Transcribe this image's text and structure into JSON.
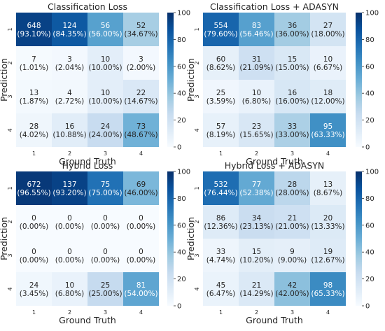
{
  "chart_data": [
    {
      "type": "heatmap",
      "title": "Classification Loss",
      "xlabel": "Ground Truth",
      "ylabel": "Prediction",
      "x_categories": [
        "1",
        "2",
        "3",
        "4"
      ],
      "y_categories": [
        "1",
        "2",
        "3",
        "4"
      ],
      "counts": [
        [
          648,
          124,
          56,
          52
        ],
        [
          7,
          3,
          10,
          3
        ],
        [
          13,
          4,
          10,
          22
        ],
        [
          28,
          16,
          24,
          73
        ]
      ],
      "percents": [
        [
          "(93.10%)",
          "(84.35%)",
          "(56.00%)",
          "(34.67%)"
        ],
        [
          "(1.01%)",
          "(2.04%)",
          "(10.00%)",
          "(2.00%)"
        ],
        [
          "(1.87%)",
          "(2.72%)",
          "(10.00%)",
          "(14.67%)"
        ],
        [
          "(4.02%)",
          "(10.88%)",
          "(24.00%)",
          "(48.67%)"
        ]
      ],
      "color_values": [
        [
          93.1,
          84.35,
          56.0,
          34.67
        ],
        [
          1.01,
          2.04,
          10.0,
          2.0
        ],
        [
          1.87,
          2.72,
          10.0,
          14.67
        ],
        [
          4.02,
          10.88,
          24.0,
          48.67
        ]
      ],
      "colorbar_ticks": [
        "0",
        "20",
        "40",
        "60",
        "80",
        "100"
      ],
      "color_range": [
        0,
        100
      ]
    },
    {
      "type": "heatmap",
      "title": "Classification Loss + ADASYN",
      "xlabel": "Ground Truth",
      "ylabel": "Prediction",
      "x_categories": [
        "1",
        "2",
        "3",
        "4"
      ],
      "y_categories": [
        "1",
        "2",
        "3",
        "4"
      ],
      "counts": [
        [
          554,
          83,
          36,
          27
        ],
        [
          60,
          31,
          15,
          10
        ],
        [
          25,
          10,
          16,
          18
        ],
        [
          57,
          23,
          33,
          95
        ]
      ],
      "percents": [
        [
          "(79.60%)",
          "(56.46%)",
          "(36.00%)",
          "(18.00%)"
        ],
        [
          "(8.62%)",
          "(21.09%)",
          "(15.00%)",
          "(6.67%)"
        ],
        [
          "(3.59%)",
          "(6.80%)",
          "(16.00%)",
          "(12.00%)"
        ],
        [
          "(8.19%)",
          "(15.65%)",
          "(33.00%)",
          "(63.33%)"
        ]
      ],
      "color_values": [
        [
          79.6,
          56.46,
          36.0,
          18.0
        ],
        [
          8.62,
          21.09,
          15.0,
          6.67
        ],
        [
          3.59,
          6.8,
          16.0,
          12.0
        ],
        [
          8.19,
          15.65,
          33.0,
          63.33
        ]
      ],
      "colorbar_ticks": [
        "0",
        "20",
        "40",
        "60",
        "80",
        "100"
      ],
      "color_range": [
        0,
        100
      ]
    },
    {
      "type": "heatmap",
      "title": "Hybrid Loss",
      "xlabel": "Ground Truth",
      "ylabel": "Prediction",
      "x_categories": [
        "1",
        "2",
        "3",
        "4"
      ],
      "y_categories": [
        "1",
        "2",
        "3",
        "4"
      ],
      "counts": [
        [
          672,
          137,
          75,
          69
        ],
        [
          0,
          0,
          0,
          0
        ],
        [
          0,
          0,
          0,
          0
        ],
        [
          24,
          10,
          25,
          81
        ]
      ],
      "percents": [
        [
          "(96.55%)",
          "(93.20%)",
          "(75.00%)",
          "(46.00%)"
        ],
        [
          "(0.00%)",
          "(0.00%)",
          "(0.00%)",
          "(0.00%)"
        ],
        [
          "(0.00%)",
          "(0.00%)",
          "(0.00%)",
          "(0.00%)"
        ],
        [
          "(3.45%)",
          "(6.80%)",
          "(25.00%)",
          "(54.00%)"
        ]
      ],
      "color_values": [
        [
          96.55,
          93.2,
          75.0,
          46.0
        ],
        [
          0,
          0,
          0,
          0
        ],
        [
          0,
          0,
          0,
          0
        ],
        [
          3.45,
          6.8,
          25.0,
          54.0
        ]
      ],
      "colorbar_ticks": [
        "0",
        "20",
        "40",
        "60",
        "80",
        "100"
      ],
      "color_range": [
        0,
        100
      ]
    },
    {
      "type": "heatmap",
      "title": "Hybrid Loss + ADASYN",
      "xlabel": "Ground Truth",
      "ylabel": "Prediction",
      "x_categories": [
        "1",
        "2",
        "3",
        "4"
      ],
      "y_categories": [
        "1",
        "2",
        "3",
        "4"
      ],
      "counts": [
        [
          532,
          77,
          28,
          13
        ],
        [
          86,
          34,
          21,
          20
        ],
        [
          33,
          15,
          9,
          19
        ],
        [
          45,
          21,
          42,
          98
        ]
      ],
      "percents": [
        [
          "(76.44%)",
          "(52.38%)",
          "(28.00%)",
          "(8.67%)"
        ],
        [
          "(12.36%)",
          "(23.13%)",
          "(21.00%)",
          "(13.33%)"
        ],
        [
          "(4.74%)",
          "(10.20%)",
          "(9.00%)",
          "(12.67%)"
        ],
        [
          "(6.47%)",
          "(14.29%)",
          "(42.00%)",
          "(65.33%)"
        ]
      ],
      "color_values": [
        [
          76.44,
          52.38,
          28.0,
          8.67
        ],
        [
          12.36,
          23.13,
          21.0,
          13.33
        ],
        [
          4.74,
          10.2,
          9.0,
          12.67
        ],
        [
          6.47,
          14.29,
          42.0,
          65.33
        ]
      ],
      "colorbar_ticks": [
        "0",
        "20",
        "40",
        "60",
        "80",
        "100"
      ],
      "color_range": [
        0,
        100
      ]
    }
  ],
  "colors": {
    "colormap": "Blues",
    "stops": [
      "#f7fbff",
      "#deebf7",
      "#c6dbef",
      "#9ecae1",
      "#6baed6",
      "#4292c6",
      "#2171b5",
      "#08519c",
      "#08306b"
    ],
    "light_text": "#ffffff",
    "dark_text": "#262626"
  }
}
